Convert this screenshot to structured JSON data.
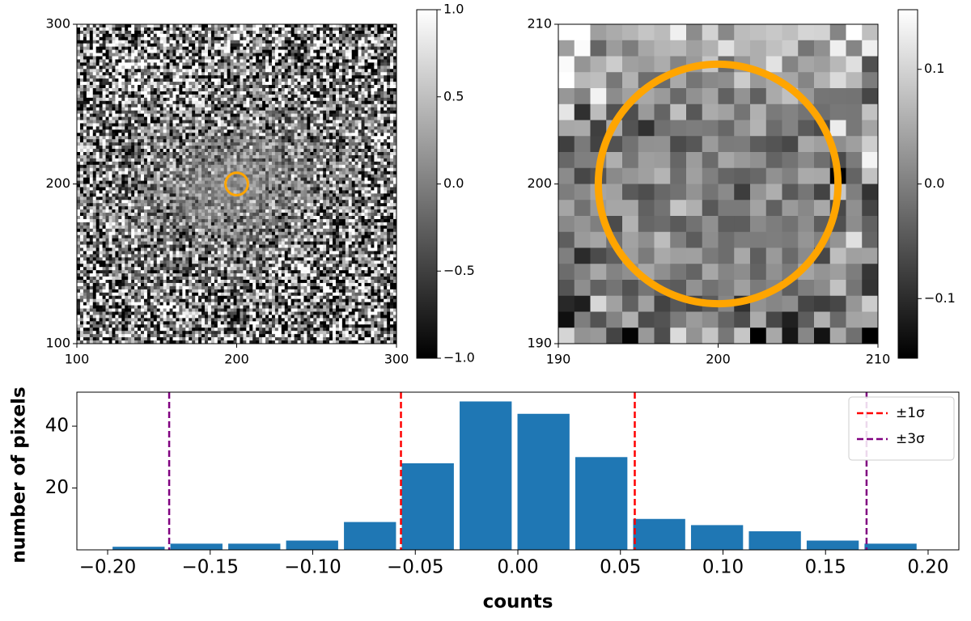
{
  "chart_data": [
    {
      "type": "image",
      "xlim": [
        100,
        300
      ],
      "ylim": [
        100,
        300
      ],
      "xticks": [
        100,
        200,
        300
      ],
      "yticks": [
        100,
        200,
        300
      ],
      "colorbar": {
        "clim": [
          -1,
          1
        ],
        "ticks": [
          {
            "value": -1,
            "label": "−1.0"
          },
          {
            "value": -0.5,
            "label": "−0.5"
          },
          {
            "value": 0,
            "label": "0.0"
          },
          {
            "value": 0.5,
            "label": "0.5"
          },
          {
            "value": 1,
            "label": "1.0"
          }
        ]
      },
      "circle": {
        "center": [
          200,
          200
        ],
        "radius": 7,
        "color": "#ffa500"
      }
    },
    {
      "type": "image",
      "xlim": [
        190,
        210
      ],
      "ylim": [
        190,
        210
      ],
      "xticks": [
        190,
        200,
        210
      ],
      "yticks": [
        190,
        200,
        210
      ],
      "colorbar": {
        "clim": [
          -0.152,
          0.152
        ],
        "ticks": [
          {
            "value": -0.1,
            "label": "−0.1"
          },
          {
            "value": 0,
            "label": "0.0"
          },
          {
            "value": 0.1,
            "label": "0.1"
          }
        ]
      },
      "circle": {
        "center": [
          200,
          200
        ],
        "radius": 7.5,
        "color": "#ffa500"
      }
    },
    {
      "type": "histogram",
      "xlabel": "counts",
      "ylabel": "number of pixels",
      "color": "#1f77b4",
      "bins": [
        -0.199,
        -0.1708,
        -0.1426,
        -0.1144,
        -0.0862,
        -0.058,
        -0.0298,
        -0.0016,
        0.0266,
        0.0548,
        0.083,
        0.1112,
        0.1394,
        0.1676,
        0.1958
      ],
      "values": [
        1,
        2,
        2,
        3,
        9,
        28,
        48,
        44,
        30,
        10,
        8,
        6,
        3,
        2
      ],
      "xlim": [
        -0.215,
        0.215
      ],
      "ylim": [
        0,
        51
      ],
      "xticks": [
        {
          "value": -0.2,
          "label": "−0.20"
        },
        {
          "value": -0.15,
          "label": "−0.15"
        },
        {
          "value": -0.1,
          "label": "−0.10"
        },
        {
          "value": -0.05,
          "label": "−0.05"
        },
        {
          "value": 0,
          "label": "0.00"
        },
        {
          "value": 0.05,
          "label": "0.05"
        },
        {
          "value": 0.1,
          "label": "0.10"
        },
        {
          "value": 0.15,
          "label": "0.15"
        },
        {
          "value": 0.2,
          "label": "0.20"
        }
      ],
      "yticks": [
        20,
        40
      ],
      "lines": [
        {
          "name": "±1σ",
          "color": "#ff0000",
          "values": [
            -0.057,
            0.057
          ]
        },
        {
          "name": "±3σ",
          "color": "#800080",
          "values": [
            -0.17,
            0.17
          ]
        }
      ],
      "legend": "upper right"
    }
  ]
}
